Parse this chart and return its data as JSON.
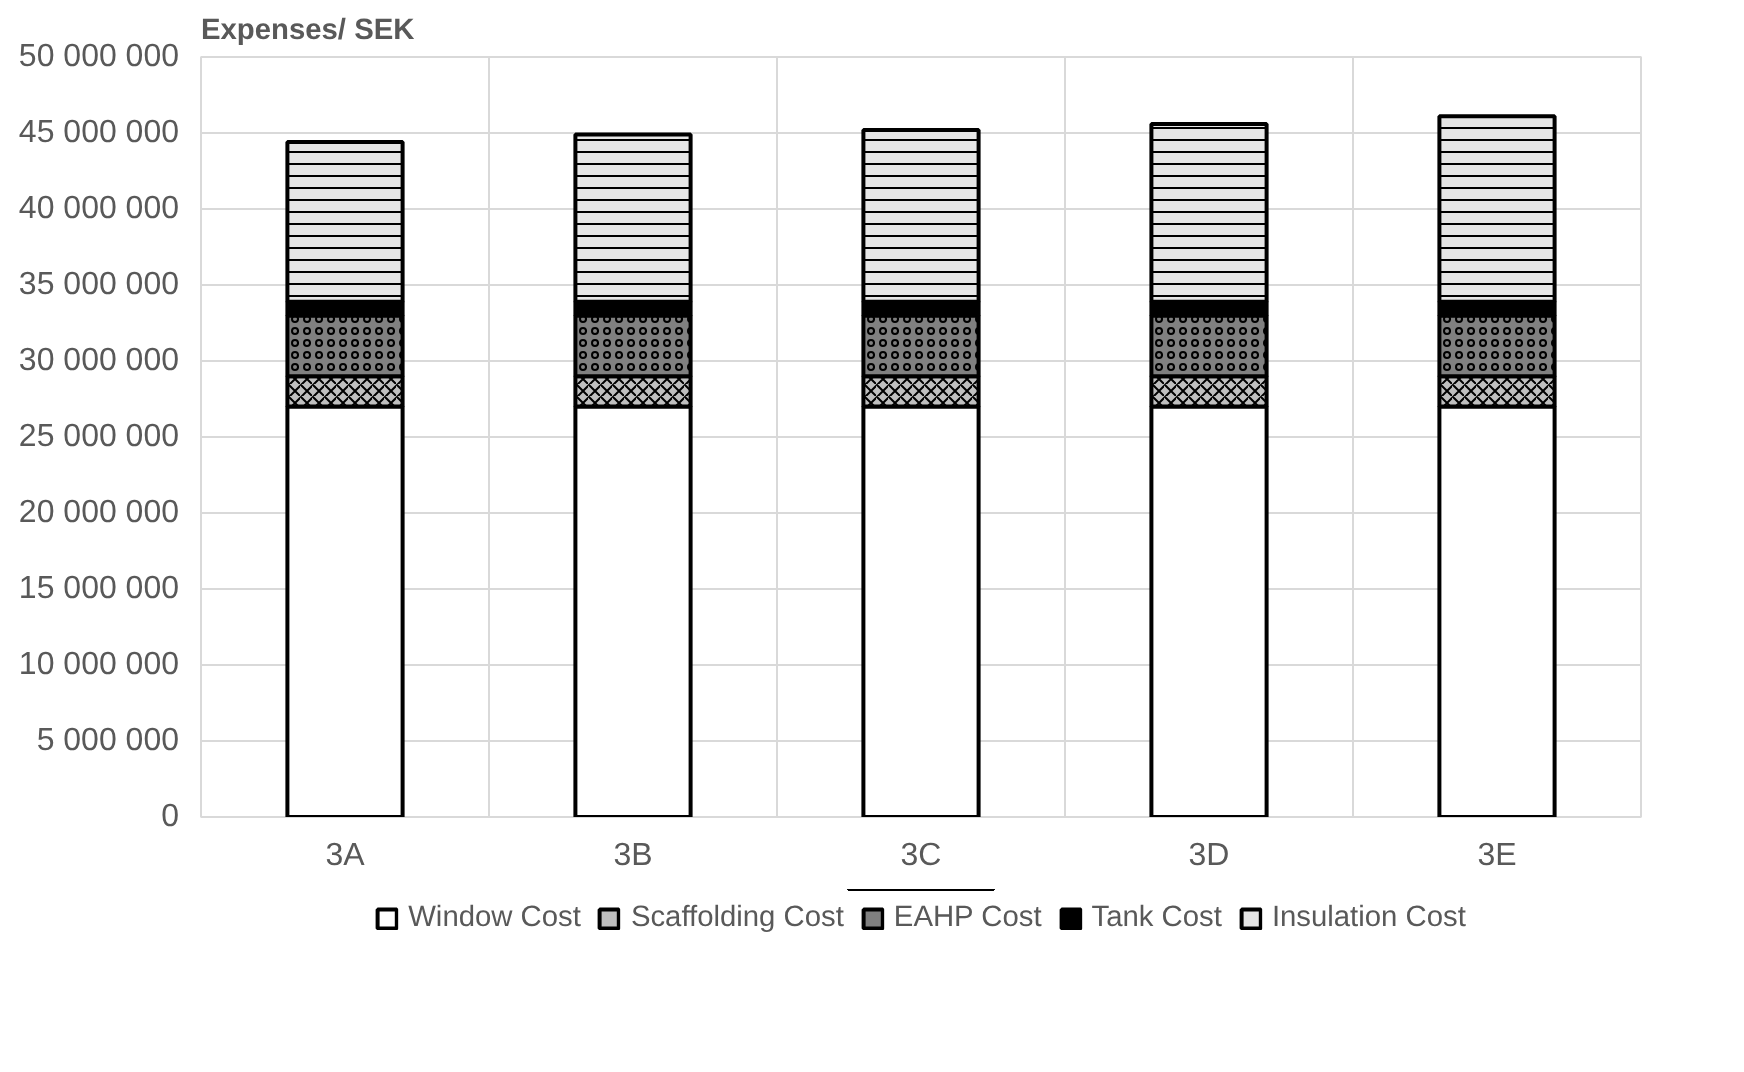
{
  "chart_data": {
    "type": "bar",
    "stacked": true,
    "ylabel": "Expenses/ SEK",
    "categories": [
      "3A",
      "3B",
      "3C",
      "3D",
      "3E"
    ],
    "series": [
      {
        "name": "Window Cost",
        "color": "#ffffff",
        "values": [
          27000000,
          27000000,
          27000000,
          27000000,
          27000000
        ]
      },
      {
        "name": "Scaffolding Cost",
        "color": "#bfbfbf",
        "values": [
          2000000,
          2000000,
          2000000,
          2000000,
          2000000
        ]
      },
      {
        "name": "EAHP Cost",
        "color": "#808080",
        "values": [
          4000000,
          4000000,
          4000000,
          4000000,
          4000000
        ]
      },
      {
        "name": "Tank Cost",
        "color": "#000000",
        "values": [
          900000,
          900000,
          900000,
          900000,
          900000
        ]
      },
      {
        "name": "Insulation Cost",
        "color": "#e6e6e6",
        "values": [
          10500000,
          11000000,
          11300000,
          11700000,
          12200000
        ]
      }
    ],
    "ylim": [
      0,
      50000000
    ],
    "yticks": [
      {
        "value": 0,
        "label": "0"
      },
      {
        "value": 5000000,
        "label": "5 000 000"
      },
      {
        "value": 10000000,
        "label": "10 000 000"
      },
      {
        "value": 15000000,
        "label": "15 000 000"
      },
      {
        "value": 20000000,
        "label": "20 000 000"
      },
      {
        "value": 25000000,
        "label": "25 000 000"
      },
      {
        "value": 30000000,
        "label": "30 000 000"
      },
      {
        "value": 35000000,
        "label": "35 000 000"
      },
      {
        "value": 40000000,
        "label": "40 000 000"
      },
      {
        "value": 45000000,
        "label": "45 000 000"
      },
      {
        "value": 50000000,
        "label": "50 000 000"
      }
    ],
    "grid": true,
    "legend": "bottom"
  }
}
